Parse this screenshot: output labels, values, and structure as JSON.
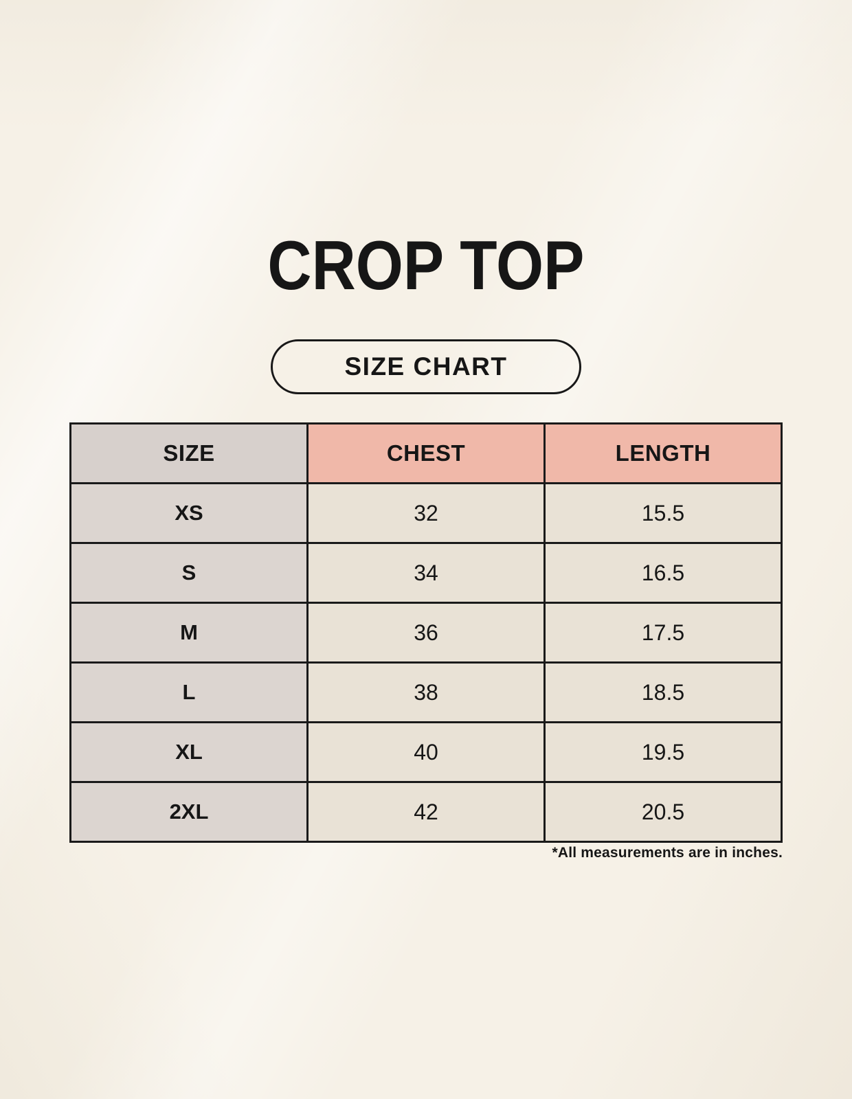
{
  "page": {
    "title": "CROP TOP",
    "size_chart_label": "SIZE CHART",
    "footnote": "*All measurements are in inches."
  },
  "table": {
    "columns": [
      "SIZE",
      "CHEST",
      "LENGTH"
    ],
    "rows": [
      {
        "size": "XS",
        "chest": "32",
        "length": "15.5"
      },
      {
        "size": "S",
        "chest": "34",
        "length": "16.5"
      },
      {
        "size": "M",
        "chest": "36",
        "length": "17.5"
      },
      {
        "size": "L",
        "chest": "38",
        "length": "18.5"
      },
      {
        "size": "XL",
        "chest": "40",
        "length": "19.5"
      },
      {
        "size": "2XL",
        "chest": "42",
        "length": "20.5"
      }
    ]
  },
  "chart_data": {
    "type": "table",
    "title": "CROP TOP",
    "subtitle": "SIZE CHART",
    "columns": [
      "SIZE",
      "CHEST",
      "LENGTH"
    ],
    "rows": [
      [
        "XS",
        32,
        15.5
      ],
      [
        "S",
        34,
        16.5
      ],
      [
        "M",
        36,
        17.5
      ],
      [
        "L",
        38,
        18.5
      ],
      [
        "XL",
        40,
        19.5
      ],
      [
        "2XL",
        42,
        20.5
      ]
    ],
    "units": "inches",
    "annotations": [
      "*All measurements are in inches."
    ]
  },
  "colors": {
    "background": "#f6f1e7",
    "table_border": "#1a1a1a",
    "header_size_bg": "#d7d0cc",
    "header_measure_bg": "#f0b8a9",
    "size_column_bg": "#dcd5d0",
    "value_cell_bg": "#e9e2d6",
    "text": "#161616"
  }
}
